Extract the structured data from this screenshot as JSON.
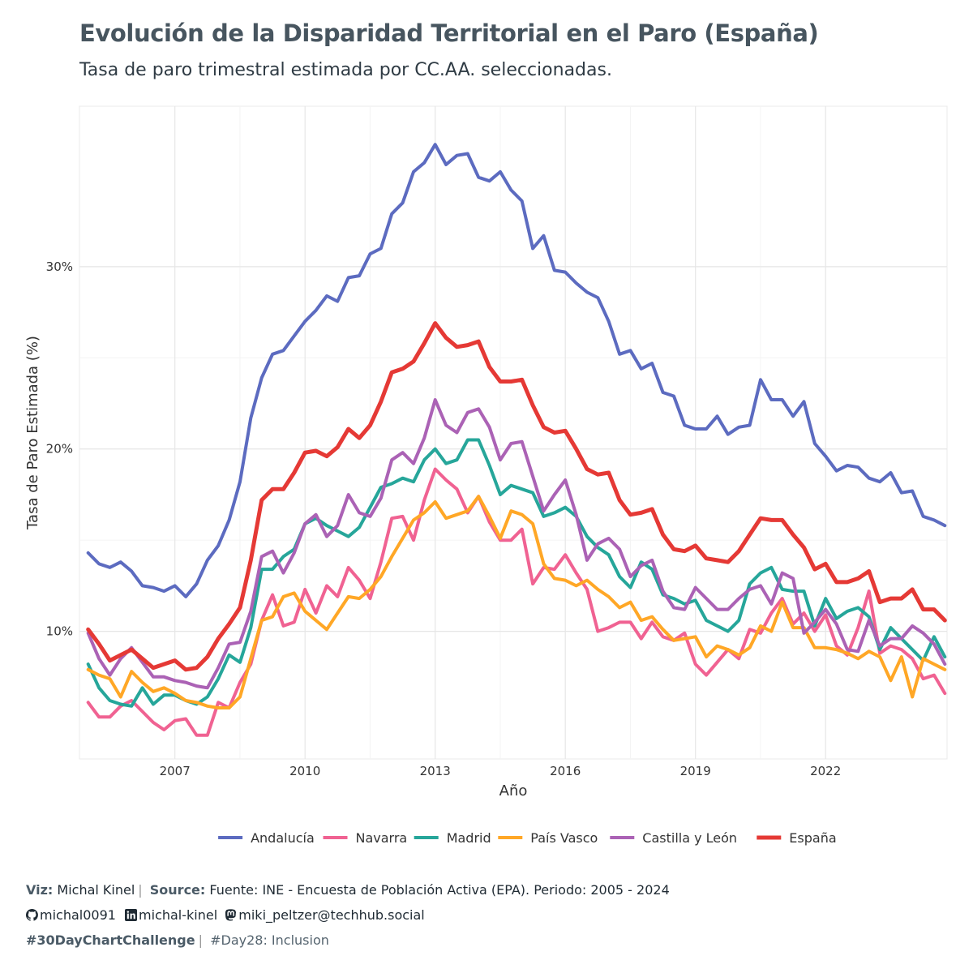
{
  "header": {
    "title": "Evolución de la Disparidad Territorial en el Paro (España)",
    "subtitle": "Tasa de paro trimestral estimada por CC.AA. seleccionadas."
  },
  "footer": {
    "viz_label": "Viz:",
    "viz_author": "Michal Kinel",
    "source_label": "Source:",
    "source_text": "Fuente: INE - Encuesta de Población Activa (EPA). Periodo: 2005 - 2024",
    "github": "michal0091",
    "linkedin": "michal-kinel",
    "mastodon": "miki_peltzer@techhub.social",
    "hashtag": "#30DayChartChallenge",
    "day": "#Day28: Inclusion"
  },
  "chart_data": {
    "type": "line",
    "xlabel": "Año",
    "ylabel": "Tasa de Paro Estimada (%)",
    "x_start": 2005.0,
    "x_step": 0.25,
    "xlim": [
      2004.8,
      2024.8
    ],
    "ylim": [
      3.0,
      38.8
    ],
    "x_ticks": [
      2007,
      2010,
      2013,
      2016,
      2019,
      2022
    ],
    "x_tick_labels": [
      "2007",
      "2010",
      "2013",
      "2016",
      "2019",
      "2022"
    ],
    "y_ticks": [
      10,
      20,
      30
    ],
    "y_tick_labels": [
      "10%",
      "20%",
      "30%"
    ],
    "grid": true,
    "legend_position": "bottom",
    "series": [
      {
        "name": "Andalucía",
        "color": "#5c6bc0",
        "width": 4,
        "values": [
          14.3,
          13.7,
          13.5,
          13.8,
          13.3,
          12.5,
          12.4,
          12.2,
          12.5,
          11.9,
          12.6,
          13.9,
          14.7,
          16.1,
          18.2,
          21.7,
          23.9,
          25.2,
          25.4,
          26.2,
          27.0,
          27.6,
          28.4,
          28.1,
          29.4,
          29.5,
          30.7,
          31.0,
          32.9,
          33.5,
          35.2,
          35.7,
          36.7,
          35.6,
          36.1,
          36.2,
          34.9,
          34.7,
          35.2,
          34.2,
          33.6,
          31.0,
          31.7,
          29.8,
          29.7,
          29.1,
          28.6,
          28.3,
          27.0,
          25.2,
          25.4,
          24.4,
          24.7,
          23.1,
          22.9,
          21.3,
          21.1,
          21.1,
          21.8,
          20.8,
          21.2,
          21.3,
          23.8,
          22.7,
          22.7,
          21.8,
          22.6,
          20.3,
          19.6,
          18.8,
          19.1,
          19.0,
          18.4,
          18.2,
          18.7,
          17.6,
          17.7,
          16.3,
          16.1,
          15.8
        ]
      },
      {
        "name": "Navarra",
        "color": "#f06292",
        "width": 4,
        "values": [
          6.1,
          5.3,
          5.3,
          5.9,
          6.2,
          5.6,
          5.0,
          4.6,
          5.1,
          5.2,
          4.3,
          4.3,
          6.1,
          5.8,
          7.2,
          8.2,
          10.6,
          12.0,
          10.3,
          10.5,
          12.3,
          11.0,
          12.5,
          11.9,
          13.5,
          12.8,
          11.8,
          13.8,
          16.2,
          16.3,
          15.0,
          17.2,
          18.9,
          18.3,
          17.8,
          16.5,
          17.4,
          16.0,
          15.0,
          15.0,
          15.6,
          12.6,
          13.5,
          13.4,
          14.2,
          13.2,
          12.3,
          10.0,
          10.2,
          10.5,
          10.5,
          9.6,
          10.5,
          9.7,
          9.5,
          9.9,
          8.2,
          7.6,
          8.3,
          9.0,
          8.5,
          10.1,
          9.9,
          11.0,
          11.8,
          10.4,
          11.0,
          10.0,
          10.9,
          9.2,
          8.7,
          10.2,
          12.2,
          8.8,
          9.2,
          9.0,
          8.5,
          7.4,
          7.6,
          6.6
        ]
      },
      {
        "name": "Madrid",
        "color": "#26a69a",
        "width": 4,
        "values": [
          8.2,
          6.9,
          6.2,
          6.0,
          5.9,
          6.9,
          6.0,
          6.5,
          6.5,
          6.2,
          6.0,
          6.4,
          7.4,
          8.7,
          8.3,
          10.2,
          13.4,
          13.4,
          14.1,
          14.5,
          15.9,
          16.2,
          15.8,
          15.5,
          15.2,
          15.7,
          16.8,
          17.9,
          18.1,
          18.4,
          18.2,
          19.4,
          20.0,
          19.2,
          19.4,
          20.5,
          20.5,
          19.1,
          17.5,
          18.0,
          17.8,
          17.6,
          16.3,
          16.5,
          16.8,
          16.3,
          15.2,
          14.6,
          14.2,
          13.0,
          12.4,
          13.8,
          13.4,
          12.0,
          11.8,
          11.5,
          11.7,
          10.6,
          10.3,
          10.0,
          10.6,
          12.6,
          13.2,
          13.5,
          12.3,
          12.2,
          12.2,
          10.3,
          11.8,
          10.7,
          11.1,
          11.3,
          10.8,
          9.0,
          10.2,
          9.6,
          9.0,
          8.4,
          9.7,
          8.6
        ]
      },
      {
        "name": "País Vasco",
        "color": "#ffa726",
        "width": 4,
        "values": [
          7.9,
          7.6,
          7.4,
          6.4,
          7.8,
          7.2,
          6.7,
          6.9,
          6.6,
          6.2,
          6.1,
          5.9,
          5.8,
          5.8,
          6.4,
          8.5,
          10.6,
          10.8,
          11.9,
          12.1,
          11.1,
          10.6,
          10.1,
          11.0,
          11.9,
          11.8,
          12.3,
          13.0,
          14.1,
          15.1,
          16.1,
          16.5,
          17.1,
          16.2,
          16.4,
          16.6,
          17.4,
          16.3,
          15.1,
          16.6,
          16.4,
          15.9,
          13.7,
          12.9,
          12.8,
          12.5,
          12.8,
          12.3,
          11.9,
          11.3,
          11.6,
          10.6,
          10.8,
          10.1,
          9.5,
          9.6,
          9.7,
          8.6,
          9.2,
          9.0,
          8.7,
          9.1,
          10.3,
          10.0,
          11.6,
          10.2,
          10.2,
          9.1,
          9.1,
          9.0,
          8.8,
          8.5,
          8.9,
          8.6,
          7.3,
          8.6,
          6.4,
          8.5,
          8.2,
          7.9
        ]
      },
      {
        "name": "Castilla y León",
        "color": "#ab62b5",
        "width": 4,
        "values": [
          9.9,
          8.5,
          7.6,
          8.5,
          9.1,
          8.3,
          7.5,
          7.5,
          7.3,
          7.2,
          7.0,
          6.9,
          8.0,
          9.3,
          9.4,
          11.1,
          14.1,
          14.4,
          13.2,
          14.3,
          15.9,
          16.4,
          15.2,
          15.8,
          17.5,
          16.5,
          16.3,
          17.3,
          19.4,
          19.8,
          19.2,
          20.6,
          22.7,
          21.3,
          20.9,
          22.0,
          22.2,
          21.2,
          19.4,
          20.3,
          20.4,
          18.5,
          16.6,
          17.5,
          18.3,
          16.4,
          13.9,
          14.8,
          15.1,
          14.5,
          13.0,
          13.6,
          13.9,
          12.2,
          11.3,
          11.2,
          12.4,
          11.8,
          11.2,
          11.2,
          11.8,
          12.3,
          12.5,
          11.5,
          13.2,
          12.9,
          9.9,
          10.5,
          11.2,
          10.4,
          9.0,
          8.9,
          10.6,
          9.2,
          9.6,
          9.6,
          10.3,
          9.9,
          9.3,
          8.2
        ]
      },
      {
        "name": "España",
        "color": "#e53935",
        "width": 5,
        "values": [
          10.1,
          9.3,
          8.4,
          8.7,
          9.0,
          8.5,
          8.0,
          8.2,
          8.4,
          7.9,
          8.0,
          8.6,
          9.6,
          10.4,
          11.3,
          13.9,
          17.2,
          17.8,
          17.8,
          18.7,
          19.8,
          19.9,
          19.6,
          20.1,
          21.1,
          20.6,
          21.3,
          22.6,
          24.2,
          24.4,
          24.8,
          25.8,
          26.9,
          26.1,
          25.6,
          25.7,
          25.9,
          24.5,
          23.7,
          23.7,
          23.8,
          22.4,
          21.2,
          20.9,
          21.0,
          20.0,
          18.9,
          18.6,
          18.7,
          17.2,
          16.4,
          16.5,
          16.7,
          15.3,
          14.5,
          14.4,
          14.7,
          14.0,
          13.9,
          13.8,
          14.4,
          15.3,
          16.2,
          16.1,
          16.1,
          15.3,
          14.6,
          13.4,
          13.7,
          12.7,
          12.7,
          12.9,
          13.3,
          11.6,
          11.8,
          11.8,
          12.3,
          11.2,
          11.2,
          10.6
        ]
      }
    ]
  }
}
